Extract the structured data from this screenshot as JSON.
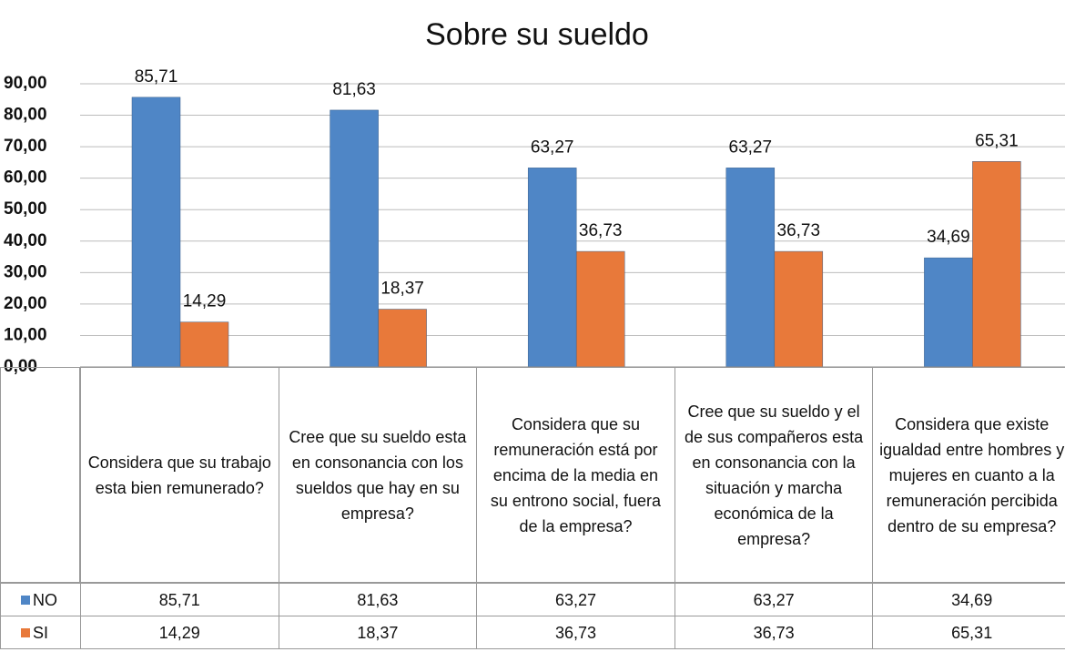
{
  "chart_data": {
    "type": "bar",
    "title": "Sobre su sueldo",
    "categories": [
      "Considera que su trabajo esta bien remunerado?",
      "Cree que su sueldo esta en consonancia con los sueldos que hay en su empresa?",
      "Considera que su remuneración está por encima de la media en su entrono social, fuera de la empresa?",
      "Cree que su sueldo y el de sus compañeros esta en consonancia con la situación y marcha económica de la empresa?",
      "Considera que existe igualdad entre hombres y mujeres en cuanto a la remuneración percibida dentro de su empresa?"
    ],
    "series": [
      {
        "name": "NO",
        "color": "#4f86c6",
        "values": [
          85.71,
          81.63,
          63.27,
          63.27,
          34.69
        ],
        "value_labels": [
          "85,71",
          "81,63",
          "63,27",
          "63,27",
          "34,69"
        ]
      },
      {
        "name": "SI",
        "color": "#e8793a",
        "values": [
          14.29,
          18.37,
          36.73,
          36.73,
          65.31
        ],
        "value_labels": [
          "14,29",
          "18,37",
          "36,73",
          "36,73",
          "65,31"
        ]
      }
    ],
    "ylim": [
      0,
      90
    ],
    "yticks": [
      {
        "value": 0,
        "label": "0,00"
      },
      {
        "value": 10,
        "label": "10,00"
      },
      {
        "value": 20,
        "label": "20,00"
      },
      {
        "value": 30,
        "label": "30,00"
      },
      {
        "value": 40,
        "label": "40,00"
      },
      {
        "value": 50,
        "label": "50,00"
      },
      {
        "value": 60,
        "label": "60,00"
      },
      {
        "value": 70,
        "label": "70,00"
      },
      {
        "value": 80,
        "label": "80,00"
      },
      {
        "value": 90,
        "label": "90,00"
      }
    ],
    "grid": true
  }
}
